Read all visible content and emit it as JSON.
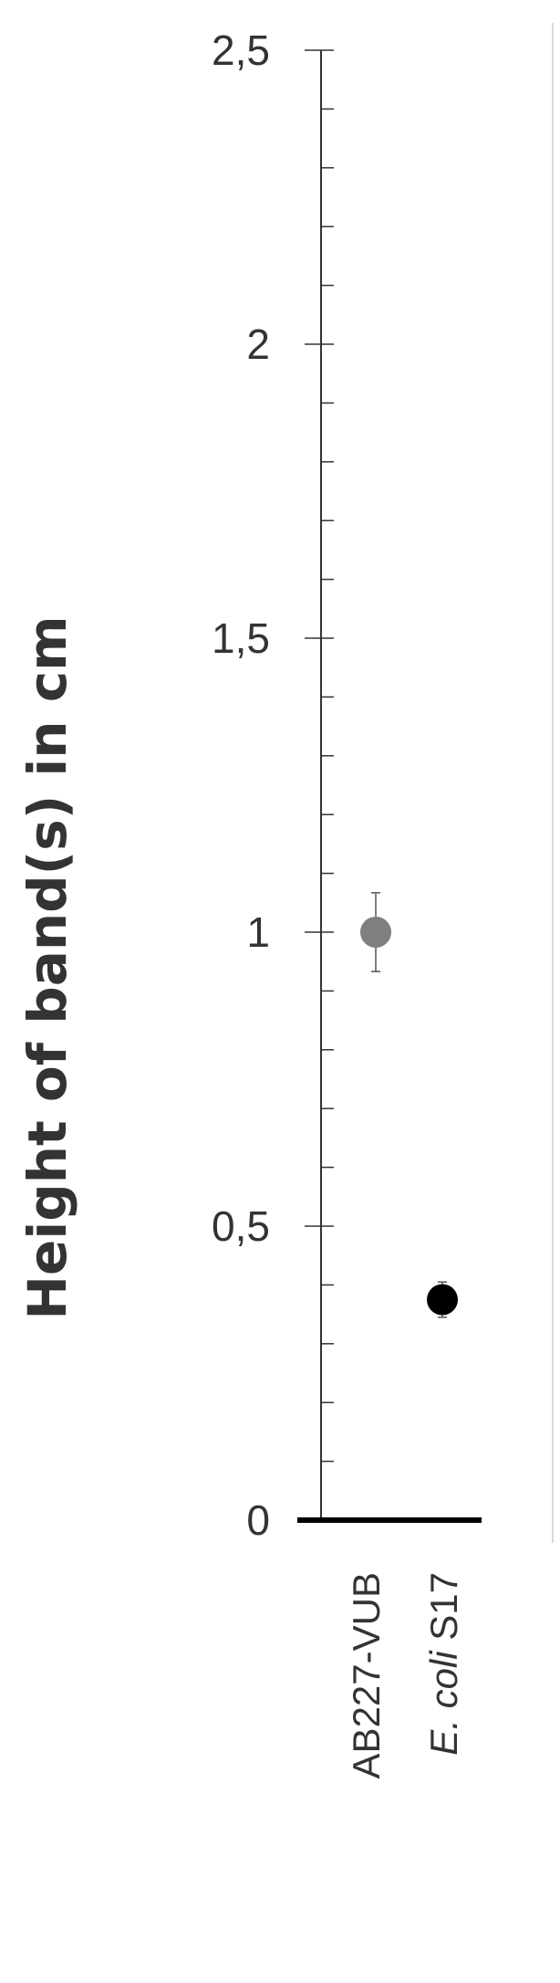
{
  "chart_data": {
    "type": "scatter",
    "title": "",
    "ylabel": "Height of band(s) in cm",
    "ylim": [
      0,
      2.5
    ],
    "major_ticks": [
      0,
      0.5,
      1,
      1.5,
      2,
      2.5
    ],
    "major_tick_labels": [
      "0",
      "0,5",
      "1",
      "1,5",
      "2",
      "2,5"
    ],
    "minor_step": 0.1,
    "categories": [
      {
        "label_italic": "",
        "label_rest": "AB227-VUB"
      },
      {
        "label_italic": "E. coli",
        "label_rest": " S17"
      }
    ],
    "series": [
      {
        "values": [
          1.0,
          0.375
        ],
        "errors": [
          0.067,
          0.03
        ],
        "colors": [
          "#7f7f7f",
          "#000000"
        ]
      }
    ],
    "grid": false,
    "legend": "none"
  }
}
